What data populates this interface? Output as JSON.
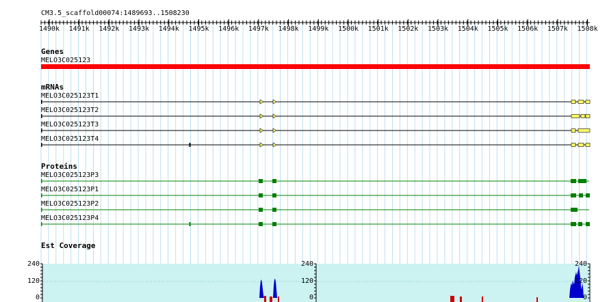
{
  "location": "CM3.5_scaffold00074:1489693..1508230",
  "ruler": {
    "ticks": [
      "1490k",
      "1491k",
      "1492k",
      "1493k",
      "1494k",
      "1495k",
      "1496k",
      "1497k",
      "1498k",
      "1499k",
      "1500k",
      "1501k",
      "1502k",
      "1503k",
      "1504k",
      "1505k",
      "1506k",
      "1507k",
      "1508k"
    ]
  },
  "colors": {
    "gene": "#ff0000",
    "mrna_exon": "#ffff66",
    "mrna_line": "#000000",
    "protein": "#008000",
    "coverage_bg": "#ccf2f2",
    "coverage_bar": "#0000cc",
    "coverage_alt": "#cc0000",
    "grid": "#bcdff0"
  },
  "tracks": {
    "genes": {
      "title": "Genes",
      "items": [
        {
          "label": "MELO3C025123"
        }
      ]
    },
    "mrnas": {
      "title": "mRNAs",
      "items": [
        {
          "label": "MELO3C025123T1"
        },
        {
          "label": "MELO3C025123T2"
        },
        {
          "label": "MELO3C025123T3"
        },
        {
          "label": "MELO3C025123T4"
        }
      ]
    },
    "proteins": {
      "title": "Proteins",
      "items": [
        {
          "label": "MELO3C025123P3"
        },
        {
          "label": "MELO3C025123P1"
        },
        {
          "label": "MELO3C025123P2"
        },
        {
          "label": "MELO3C025123P4"
        }
      ]
    },
    "coverage": {
      "title": "Est Coverage",
      "y_labels": [
        "240",
        "120",
        "0"
      ]
    }
  }
}
